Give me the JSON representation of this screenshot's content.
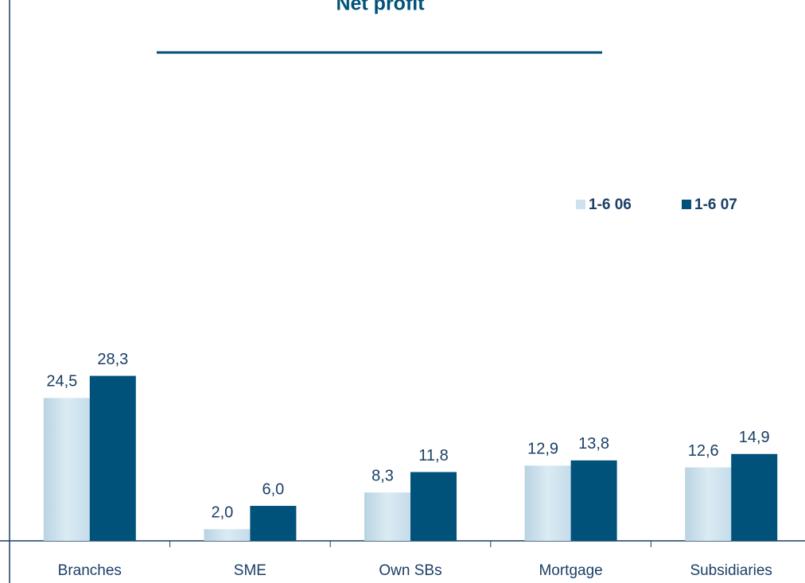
{
  "chart_data": {
    "type": "bar",
    "title": "Net profit",
    "categories": [
      "Branches",
      "SME",
      "Own SBs",
      "Mortgage",
      "Subsidiaries"
    ],
    "series": [
      {
        "name": "1-6 06",
        "color": "#cde2ee",
        "values": [
          24.5,
          2.0,
          8.3,
          12.9,
          12.6
        ],
        "value_labels": [
          "24,5",
          "2,0",
          "8,3",
          "12,9",
          "12,6"
        ]
      },
      {
        "name": "1-6 07",
        "color": "#00527a",
        "values": [
          28.3,
          6.0,
          11.8,
          13.8,
          14.9
        ],
        "value_labels": [
          "28,3",
          "6,0",
          "11,8",
          "13,8",
          "14,9"
        ]
      }
    ]
  }
}
